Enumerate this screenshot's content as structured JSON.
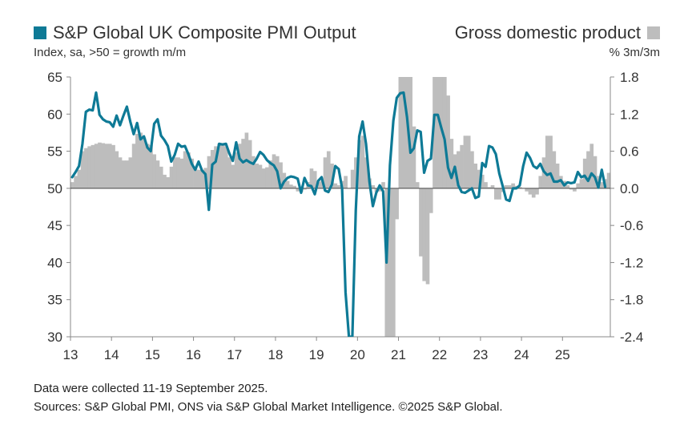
{
  "colors": {
    "pmi_line": "#0e7a96",
    "gdp_bar": "#bdbdbd",
    "axis": "#888888",
    "zero_line": "#444444"
  },
  "legend": {
    "pmi_label": "S&P Global UK Composite PMI Output",
    "gdp_label": "Gross domestic product"
  },
  "subtitle": {
    "left": "Index, sa, >50 = growth m/m",
    "right": "% 3m/3m"
  },
  "footer": {
    "line1": "Data were collected 11-19 September 2025.",
    "line2": "Sources: S&P Global PMI, ONS via S&P Global Market Intelligence. ©2025 S&P Global."
  },
  "chart_data": {
    "type": "line",
    "title": "",
    "xlabel": "",
    "ylabel": "Index, sa, >50 = growth m/m",
    "ylabel_right": "% 3m/3m",
    "x_ticks": [
      "13",
      "14",
      "15",
      "16",
      "17",
      "18",
      "19",
      "20",
      "21",
      "22",
      "23",
      "24",
      "25"
    ],
    "y_left": {
      "min": 30,
      "max": 65,
      "ticks": [
        "65",
        "60",
        "55",
        "50",
        "45",
        "40",
        "35",
        "30"
      ]
    },
    "y_right": {
      "min": -2.4,
      "max": 1.8,
      "ticks": [
        "1.8",
        "1.2",
        "0.6",
        "0.0",
        "-0.6",
        "-1.2",
        "-1.8",
        "-2.4"
      ]
    },
    "grid": false,
    "legend_position": "top",
    "x_start_year": 2013,
    "series": [
      {
        "name": "S&P Global UK Composite PMI Output",
        "axis": "left",
        "kind": "line",
        "values": [
          51.5,
          52.2,
          53.0,
          56.0,
          60.3,
          60.6,
          60.5,
          62.9,
          59.9,
          59.3,
          59.0,
          58.9,
          58.3,
          59.8,
          58.5,
          59.8,
          61.0,
          59.0,
          57.3,
          58.8,
          56.6,
          57.0,
          55.5,
          55.0,
          58.7,
          59.3,
          57.1,
          56.5,
          55.7,
          53.6,
          54.5,
          56.0,
          55.6,
          55.7,
          54.6,
          53.3,
          52.5,
          53.6,
          52.4,
          51.9,
          47.1,
          53.2,
          53.6,
          56.0,
          55.9,
          56.0,
          54.7,
          53.7,
          56.2,
          54.0,
          53.5,
          53.8,
          53.5,
          53.3,
          54.0,
          54.9,
          54.5,
          53.8,
          53.4,
          53.1,
          52.3,
          50.0,
          50.9,
          51.4,
          51.6,
          51.5,
          51.3,
          49.4,
          51.4,
          50.4,
          50.3,
          49.2,
          51.0,
          51.5,
          49.7,
          49.5,
          50.5,
          53.0,
          52.6,
          50.0,
          36.0,
          13.8,
          30.0,
          47.0,
          57.0,
          59.0,
          56.0,
          50.9,
          47.6,
          49.4,
          50.4,
          49.6,
          40.0,
          53.1,
          59.1,
          62.2,
          62.8,
          62.9,
          59.6,
          54.8,
          55.4,
          57.8,
          57.6,
          52.1,
          53.7,
          54.0,
          59.9,
          59.9,
          58.2,
          56.6,
          52.8,
          51.4,
          52.9,
          50.4,
          49.5,
          49.4,
          49.7,
          50.0,
          48.7,
          48.9,
          53.4,
          52.9,
          55.7,
          55.5,
          54.6,
          52.0,
          50.3,
          48.5,
          48.3,
          50.0,
          50.0,
          50.4,
          53.0,
          54.8,
          54.1,
          53.0,
          52.7,
          53.3,
          52.3,
          51.8,
          52.0,
          50.9,
          50.9,
          51.1,
          50.4,
          50.8,
          50.7,
          50.8,
          52.2,
          51.5,
          51.7,
          51.0,
          52.0,
          51.5,
          50.1,
          52.5,
          50.2
        ]
      },
      {
        "name": "Gross domestic product",
        "axis": "right",
        "kind": "bar",
        "values": [
          0.1,
          0.2,
          0.3,
          0.6,
          0.65,
          0.68,
          0.7,
          0.72,
          0.74,
          0.73,
          0.72,
          0.72,
          0.7,
          0.6,
          0.5,
          0.45,
          0.45,
          0.5,
          0.72,
          0.88,
          0.9,
          0.82,
          0.72,
          0.7,
          0.55,
          0.45,
          0.35,
          0.22,
          0.18,
          0.35,
          0.5,
          0.5,
          0.48,
          0.6,
          0.58,
          0.48,
          0.35,
          0.3,
          0.3,
          0.33,
          0.52,
          0.62,
          0.68,
          0.72,
          0.72,
          0.68,
          0.5,
          0.38,
          0.58,
          0.72,
          0.8,
          0.9,
          0.78,
          0.52,
          0.4,
          0.38,
          0.32,
          0.34,
          0.45,
          0.55,
          0.52,
          0.42,
          0.25,
          0.12,
          0.06,
          0.04,
          -0.05,
          -0.06,
          -0.02,
          0.1,
          0.32,
          0.28,
          0.1,
          0.12,
          0.5,
          0.6,
          0.4,
          0.08,
          0.05,
          0.12,
          0.2,
          0.0,
          0.3,
          0.5,
          0.78,
          0.85,
          0.5,
          0.16,
          0.05,
          -0.06,
          -0.05,
          0.1,
          -2.4,
          -2.4,
          -2.4,
          -0.5,
          1.8,
          1.8,
          1.8,
          1.8,
          1.0,
          0.1,
          -1.1,
          -1.5,
          -1.55,
          -0.4,
          1.8,
          1.8,
          1.8,
          1.8,
          1.5,
          0.8,
          0.55,
          0.6,
          0.7,
          0.85,
          0.85,
          0.6,
          0.4,
          0.3,
          0.22,
          0.1,
          0.02,
          0.05,
          -0.18,
          -0.18,
          -0.06,
          0.05,
          0.05,
          0.08,
          0.04,
          0.02,
          0.0,
          -0.05,
          -0.1,
          -0.15,
          -0.1,
          0.2,
          0.5,
          0.85,
          0.85,
          0.6,
          0.4,
          0.2,
          0.12,
          0.05,
          -0.02,
          -0.05,
          0.08,
          0.15,
          0.48,
          0.6,
          0.72,
          0.52,
          0.2,
          0.1,
          0.15,
          0.25
        ]
      }
    ]
  }
}
